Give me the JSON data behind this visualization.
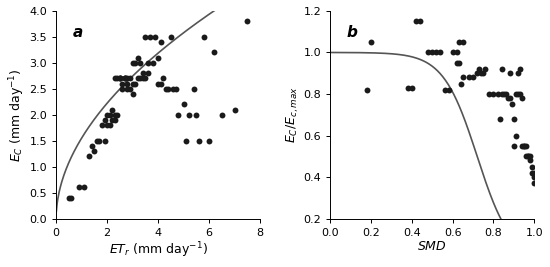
{
  "panel_a": {
    "label": "a",
    "scatter_x": [
      0.5,
      0.6,
      0.9,
      1.1,
      1.3,
      1.4,
      1.5,
      1.6,
      1.7,
      1.8,
      1.9,
      1.9,
      2.0,
      2.0,
      2.1,
      2.1,
      2.2,
      2.2,
      2.3,
      2.3,
      2.3,
      2.4,
      2.4,
      2.5,
      2.5,
      2.5,
      2.6,
      2.6,
      2.7,
      2.7,
      2.7,
      2.8,
      2.8,
      2.8,
      2.9,
      2.9,
      3.0,
      3.0,
      3.0,
      3.1,
      3.1,
      3.2,
      3.2,
      3.3,
      3.3,
      3.4,
      3.4,
      3.5,
      3.5,
      3.6,
      3.6,
      3.7,
      3.8,
      3.9,
      4.0,
      4.0,
      4.1,
      4.1,
      4.2,
      4.3,
      4.4,
      4.5,
      4.6,
      4.7,
      4.8,
      5.0,
      5.1,
      5.2,
      5.4,
      5.5,
      5.6,
      5.8,
      6.0,
      6.2,
      6.5,
      7.0,
      7.5
    ],
    "scatter_y": [
      0.4,
      0.4,
      0.6,
      0.6,
      1.2,
      1.4,
      1.3,
      1.5,
      1.5,
      1.8,
      1.5,
      1.9,
      1.8,
      2.0,
      1.8,
      2.0,
      1.9,
      2.1,
      1.9,
      2.0,
      2.7,
      2.0,
      2.7,
      2.7,
      2.7,
      2.7,
      2.5,
      2.6,
      2.7,
      2.7,
      2.7,
      2.5,
      2.6,
      2.7,
      2.5,
      2.7,
      2.4,
      2.6,
      3.0,
      2.6,
      3.0,
      2.7,
      3.1,
      2.7,
      3.0,
      2.7,
      2.8,
      2.7,
      3.5,
      2.8,
      3.0,
      3.5,
      3.0,
      3.5,
      2.6,
      3.1,
      2.6,
      3.4,
      2.7,
      2.5,
      2.5,
      3.5,
      2.5,
      2.5,
      2.0,
      2.2,
      1.5,
      2.0,
      2.5,
      2.0,
      1.5,
      3.5,
      1.5,
      3.2,
      2.0,
      2.1,
      3.8
    ],
    "curve_params": {
      "a": 1.55,
      "b": 0.52
    },
    "xlabel": "$ET_r$ (mm day$^{-1}$)",
    "ylabel": "$E_C$ (mm day$^{-1}$)",
    "xlim": [
      0,
      8
    ],
    "ylim": [
      0,
      4
    ],
    "xticks": [
      0,
      2,
      4,
      6,
      8
    ],
    "yticks": [
      0,
      0.5,
      1.0,
      1.5,
      2.0,
      2.5,
      3.0,
      3.5,
      4.0
    ]
  },
  "panel_b": {
    "label": "b",
    "scatter_x": [
      0.18,
      0.2,
      0.38,
      0.4,
      0.42,
      0.44,
      0.48,
      0.5,
      0.52,
      0.54,
      0.56,
      0.58,
      0.6,
      0.62,
      0.62,
      0.63,
      0.63,
      0.64,
      0.65,
      0.65,
      0.68,
      0.7,
      0.72,
      0.73,
      0.74,
      0.75,
      0.76,
      0.78,
      0.8,
      0.82,
      0.83,
      0.84,
      0.84,
      0.85,
      0.86,
      0.87,
      0.88,
      0.88,
      0.89,
      0.9,
      0.9,
      0.91,
      0.91,
      0.92,
      0.92,
      0.93,
      0.93,
      0.94,
      0.94,
      0.95,
      0.95,
      0.96,
      0.96,
      0.97,
      0.97,
      0.98,
      0.98,
      0.99,
      0.99,
      1.0,
      1.0,
      1.0
    ],
    "scatter_y": [
      0.82,
      1.05,
      0.83,
      0.83,
      1.15,
      1.15,
      1.0,
      1.0,
      1.0,
      1.0,
      0.82,
      0.82,
      1.0,
      1.0,
      0.95,
      0.95,
      1.05,
      0.85,
      0.88,
      1.05,
      0.88,
      0.88,
      0.9,
      0.92,
      0.9,
      0.9,
      0.92,
      0.8,
      0.8,
      0.8,
      0.68,
      0.8,
      0.92,
      0.8,
      0.8,
      0.78,
      0.78,
      0.9,
      0.75,
      0.55,
      0.68,
      0.6,
      0.8,
      0.8,
      0.9,
      0.8,
      0.92,
      0.55,
      0.78,
      0.55,
      0.55,
      0.55,
      0.5,
      0.5,
      0.5,
      0.48,
      0.5,
      0.42,
      0.45,
      0.4,
      0.42,
      0.37
    ],
    "curve_params": {
      "SMD0": 0.72,
      "k": 12.0
    },
    "xlabel": "$SMD$",
    "ylabel": "$E_C/E_{c,max}$",
    "xlim": [
      0,
      1.0
    ],
    "ylim": [
      0.2,
      1.2
    ],
    "xticks": [
      0,
      0.2,
      0.4,
      0.6,
      0.8,
      1.0
    ],
    "yticks": [
      0.2,
      0.4,
      0.6,
      0.8,
      1.0,
      1.2
    ]
  },
  "dot_color": "#1a1a1a",
  "dot_size": 18,
  "curve_color": "#555555",
  "curve_lw": 1.2,
  "bg_color": "#ffffff",
  "fig_width": 5.5,
  "fig_height": 2.67
}
